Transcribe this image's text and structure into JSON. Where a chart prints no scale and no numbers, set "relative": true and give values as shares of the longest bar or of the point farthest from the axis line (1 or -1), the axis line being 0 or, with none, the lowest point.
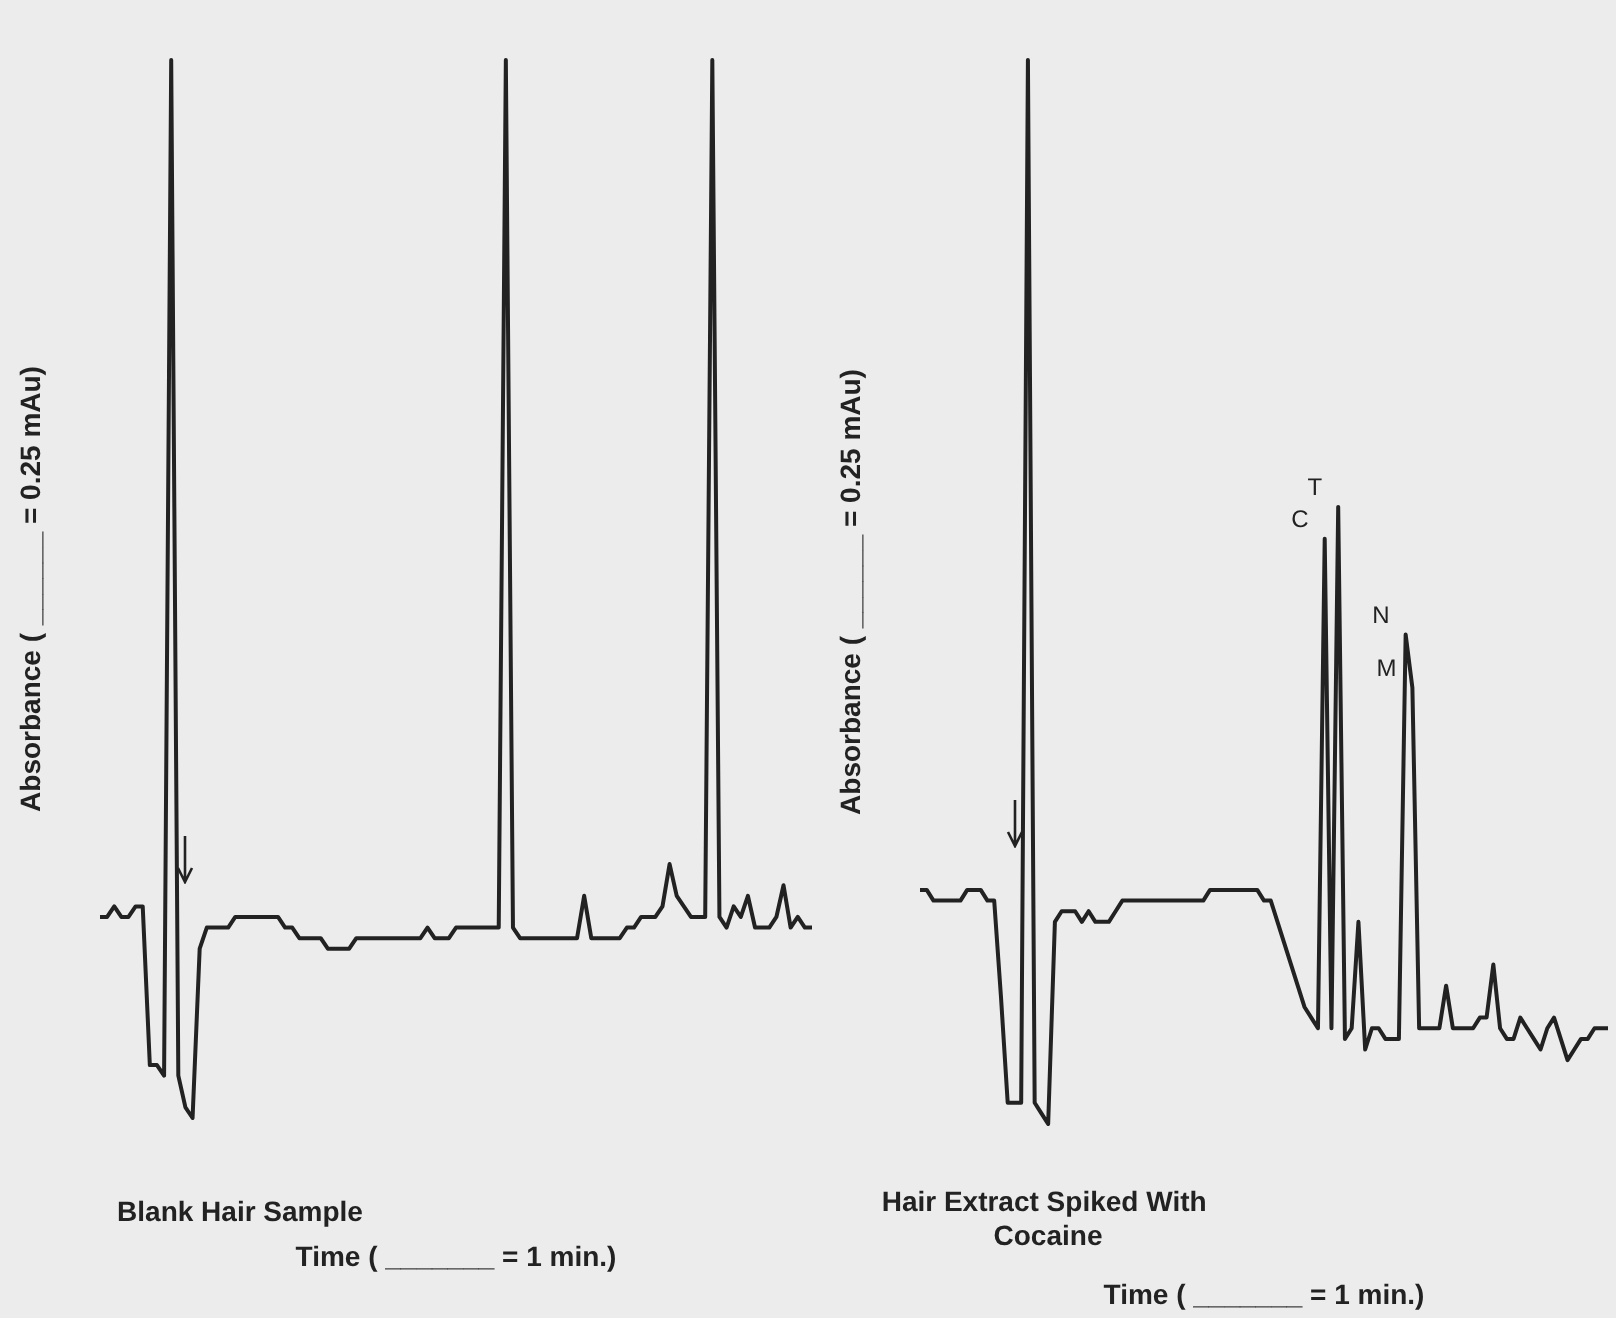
{
  "chart_data": [
    {
      "type": "line",
      "title": "Blank Hair Sample",
      "xlabel": "Time ( _______ = 1 min.)",
      "ylabel": "Absorbance ( ______ = 0.25 mAu)",
      "relative": true,
      "grid": false,
      "marker": "none",
      "categories": [
        null,
        null,
        null,
        null,
        null,
        null,
        null,
        null,
        null,
        null,
        null,
        null,
        null,
        null,
        null,
        null,
        null,
        null,
        null,
        null,
        null,
        null,
        null,
        null,
        null,
        null,
        null,
        null,
        null,
        null,
        null,
        null,
        null,
        null,
        null,
        null,
        null,
        null,
        null,
        null,
        null,
        null,
        null,
        null,
        null,
        null,
        null,
        null,
        null,
        null,
        null,
        null,
        null,
        null,
        null,
        null,
        null,
        null,
        null,
        null,
        null,
        null,
        null,
        null,
        null,
        null,
        null,
        null,
        null,
        null,
        null,
        null,
        null,
        null,
        null,
        null,
        null,
        null,
        null,
        null,
        null,
        null,
        null,
        null,
        null,
        null,
        null,
        null,
        null,
        null,
        null,
        null,
        null,
        null,
        null,
        null,
        null,
        null,
        null,
        null,
        null
      ],
      "series": [
        {
          "color": "#222222",
          "values": [
            0.19,
            0.19,
            0.2,
            0.19,
            0.19,
            0.2,
            0.2,
            0.05,
            0.05,
            0.04,
            1.0,
            0.04,
            0.01,
            0.0,
            0.16,
            0.18,
            0.18,
            0.18,
            0.18,
            0.19,
            0.19,
            0.19,
            0.19,
            0.19,
            0.19,
            0.19,
            0.18,
            0.18,
            0.17,
            0.17,
            0.17,
            0.17,
            0.16,
            0.16,
            0.16,
            0.16,
            0.17,
            0.17,
            0.17,
            0.17,
            0.17,
            0.17,
            0.17,
            0.17,
            0.17,
            0.17,
            0.18,
            0.17,
            0.17,
            0.17,
            0.18,
            0.18,
            0.18,
            0.18,
            0.18,
            0.18,
            0.18,
            1.0,
            0.18,
            0.17,
            0.17,
            0.17,
            0.17,
            0.17,
            0.17,
            0.17,
            0.17,
            0.17,
            0.21,
            0.17,
            0.17,
            0.17,
            0.17,
            0.17,
            0.18,
            0.18,
            0.19,
            0.19,
            0.19,
            0.2,
            0.24,
            0.21,
            0.2,
            0.19,
            0.19,
            0.19,
            1.0,
            0.19,
            0.18,
            0.2,
            0.19,
            0.21,
            0.18,
            0.18,
            0.18,
            0.19,
            0.22,
            0.18,
            0.19,
            0.18,
            0.18
          ]
        }
      ]
    },
    {
      "type": "line",
      "title": "Hair Extract Spiked With Cocaine",
      "xlabel": "Time ( _______ = 1 min.)",
      "ylabel": "Absorbance ( ______ = 0.25 mAu)",
      "relative": true,
      "grid": false,
      "marker": "none",
      "categories": [
        null,
        null,
        null,
        null,
        null,
        null,
        null,
        null,
        null,
        null,
        null,
        null,
        null,
        null,
        null,
        null,
        null,
        null,
        null,
        null,
        null,
        null,
        null,
        null,
        null,
        null,
        null,
        null,
        null,
        null,
        null,
        null,
        null,
        null,
        null,
        null,
        null,
        null,
        null,
        null,
        null,
        null,
        null,
        null,
        null,
        null,
        null,
        null,
        null,
        null,
        null,
        null,
        null,
        null,
        null,
        null,
        null,
        null,
        null,
        null,
        null,
        null,
        null,
        null,
        null,
        null,
        null,
        null,
        null,
        null,
        null,
        null,
        null,
        null,
        null,
        null,
        null,
        null,
        null,
        null,
        null,
        null,
        null,
        null,
        null,
        null,
        null,
        null,
        null,
        null,
        null,
        null,
        null,
        null,
        null,
        null,
        null,
        null,
        null,
        null,
        null,
        null,
        null
      ],
      "annotations": [
        "C",
        "T",
        "N",
        "M"
      ],
      "series": [
        {
          "color": "#222222",
          "values": [
            0.22,
            0.22,
            0.21,
            0.21,
            0.21,
            0.21,
            0.21,
            0.22,
            0.22,
            0.22,
            0.21,
            0.21,
            0.12,
            0.02,
            0.02,
            0.02,
            1.0,
            0.02,
            0.01,
            0.0,
            0.19,
            0.2,
            0.2,
            0.2,
            0.19,
            0.2,
            0.19,
            0.19,
            0.19,
            0.2,
            0.21,
            0.21,
            0.21,
            0.21,
            0.21,
            0.21,
            0.21,
            0.21,
            0.21,
            0.21,
            0.21,
            0.21,
            0.21,
            0.22,
            0.22,
            0.22,
            0.22,
            0.22,
            0.22,
            0.22,
            0.22,
            0.21,
            0.21,
            0.19,
            0.17,
            0.15,
            0.13,
            0.11,
            0.1,
            0.09,
            0.55,
            0.09,
            0.58,
            0.08,
            0.09,
            0.19,
            0.07,
            0.09,
            0.09,
            0.08,
            0.08,
            0.08,
            0.46,
            0.41,
            0.09,
            0.09,
            0.09,
            0.09,
            0.13,
            0.09,
            0.09,
            0.09,
            0.09,
            0.1,
            0.1,
            0.15,
            0.09,
            0.08,
            0.08,
            0.1,
            0.09,
            0.08,
            0.07,
            0.09,
            0.1,
            0.08,
            0.06,
            0.07,
            0.08,
            0.08,
            0.09,
            0.09,
            0.09
          ]
        }
      ]
    }
  ]
}
